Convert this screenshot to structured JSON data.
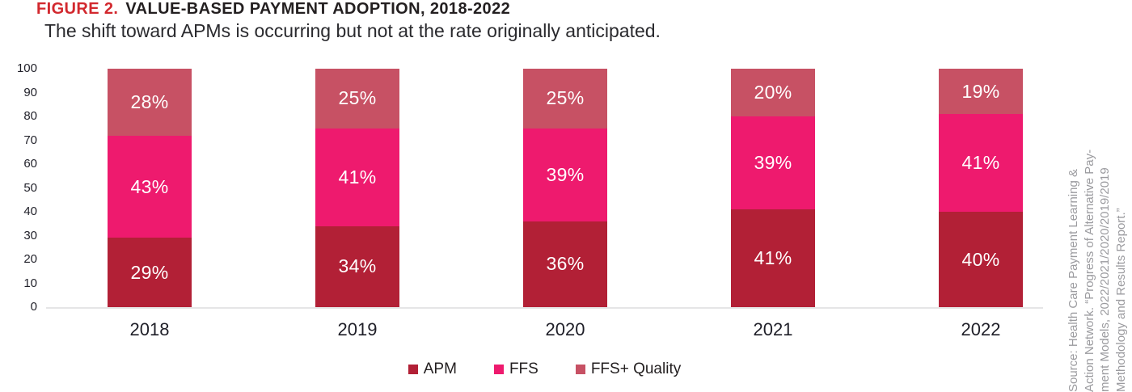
{
  "title": {
    "prefix": "FIGURE 2.",
    "text": "VALUE-BASED PAYMENT ADOPTION, 2018-2022"
  },
  "subtitle": "The shift toward APMs is occurring but not at the rate originally anticipated.",
  "colors": {
    "apm": "#b22036",
    "ffs": "#ee1a6e",
    "ffs_quality": "#c75164",
    "title_accent": "#d2282e",
    "axis_line": "#e5e5e6",
    "value_label": "#ffffff",
    "axis_text": "#1f1f28",
    "source_text": "#9b9b9f"
  },
  "chart_data": {
    "type": "bar",
    "stacked": true,
    "title": "VALUE-BASED PAYMENT ADOPTION, 2018-2022",
    "subtitle": "The shift toward APMs is occurring but not at the rate originally anticipated.",
    "categories": [
      "2018",
      "2019",
      "2020",
      "2021",
      "2022"
    ],
    "series": [
      {
        "name": "APM",
        "color_key": "apm",
        "values": [
          29,
          34,
          36,
          41,
          40
        ]
      },
      {
        "name": "FFS",
        "color_key": "ffs",
        "values": [
          43,
          41,
          39,
          39,
          41
        ]
      },
      {
        "name": "FFS+ Quality",
        "color_key": "ffs_quality",
        "values": [
          28,
          25,
          25,
          20,
          19
        ]
      }
    ],
    "value_label_format": "{v}%",
    "ylim": [
      0,
      100
    ],
    "yticks": [
      0,
      10,
      20,
      30,
      40,
      50,
      60,
      70,
      80,
      90,
      100
    ],
    "xlabel": "",
    "ylabel": "",
    "grid": false,
    "legend_position": "bottom"
  },
  "source_note": {
    "lines": [
      "Source: Health Care Payment Learning &",
      "Action Network. “Progress of Alternative Pay-",
      "ment Models, 2022/2021/2020/2019/2019",
      "Methodology and Results Report.”"
    ]
  }
}
